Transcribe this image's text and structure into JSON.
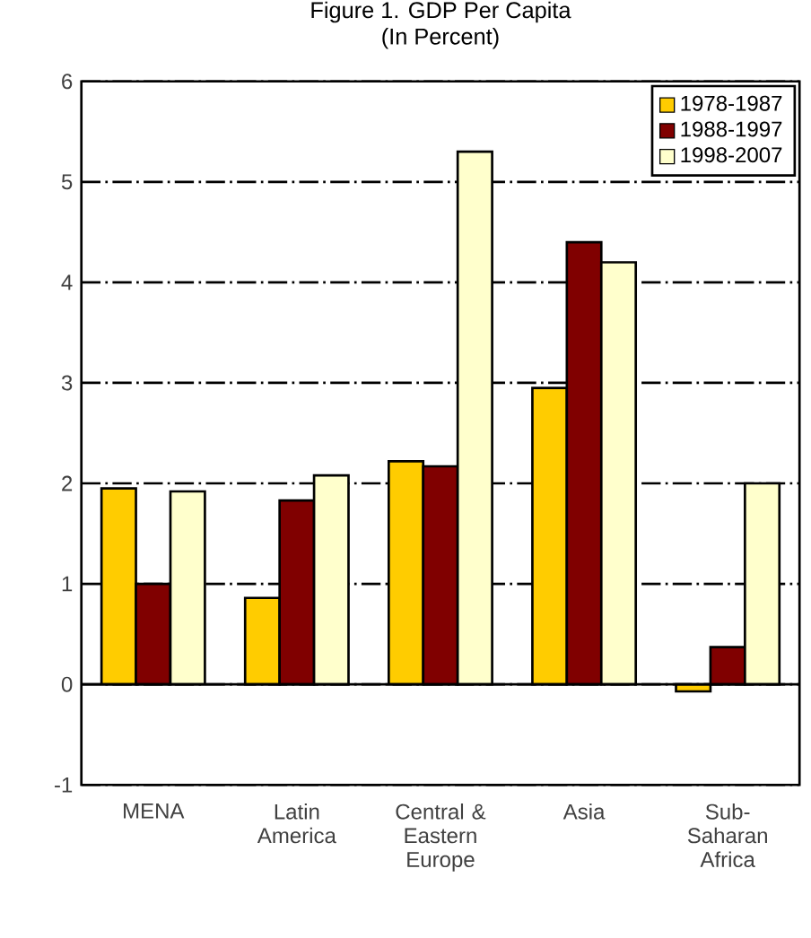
{
  "chart_data": {
    "type": "bar",
    "title": "Figure 1. GDP Per Capita",
    "subtitle": "(In Percent)",
    "categories": [
      "MENA",
      "Latin America",
      "Central & Eastern Europe",
      "Asia",
      "Sub-Saharan Africa"
    ],
    "series": [
      {
        "name": "1978-1987",
        "color": "#ffcc00",
        "values": [
          1.95,
          0.86,
          2.22,
          2.95,
          -0.07
        ]
      },
      {
        "name": "1988-1997",
        "color": "#800000",
        "values": [
          1.0,
          1.83,
          2.17,
          4.4,
          0.37
        ]
      },
      {
        "name": "1998-2007",
        "color": "#ffffcc",
        "values": [
          1.92,
          2.08,
          5.3,
          4.2,
          2.0
        ]
      }
    ],
    "ylim": [
      -1,
      6
    ],
    "yticks": [
      -1,
      0,
      1,
      2,
      3,
      4,
      5,
      6
    ],
    "grid": "y",
    "legend": "top right"
  }
}
